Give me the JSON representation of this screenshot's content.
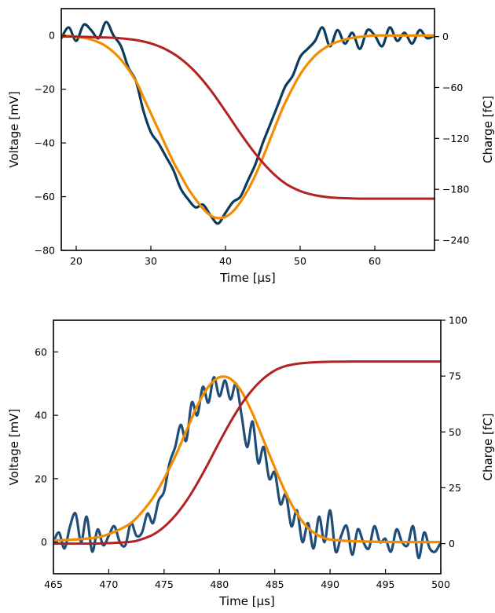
{
  "chart_data": [
    {
      "type": "line",
      "xlabel": "Time [µs]",
      "ylabel": "Voltage [mV]",
      "y2label": "Charge [fC]",
      "xlim": [
        18,
        68
      ],
      "ylim": [
        -80,
        10
      ],
      "y2lim": [
        -252,
        33
      ],
      "xticks": [
        20,
        30,
        40,
        50,
        60
      ],
      "yticks": [
        0,
        -20,
        -40,
        -60,
        -80
      ],
      "y2ticks": [
        0,
        -60,
        -120,
        -180,
        -240
      ],
      "yticklabels": [
        "0",
        "−20",
        "−40",
        "−60",
        "−80"
      ],
      "y2ticklabels": [
        "0",
        "−60",
        "−120",
        "−180",
        "−240"
      ],
      "grid": false,
      "colors": {
        "signal": "#0b3c5d",
        "fit": "#f28c00",
        "charge": "#b22222"
      },
      "series": [
        {
          "role": "signal",
          "axis": "left",
          "x": [
            18,
            19,
            20,
            21,
            22,
            23,
            24,
            25,
            26,
            27,
            28,
            29,
            30,
            31,
            32,
            33,
            34,
            35,
            36,
            37,
            38,
            39,
            40,
            41,
            42,
            43,
            44,
            45,
            46,
            47,
            48,
            49,
            50,
            51,
            52,
            53,
            54,
            55,
            56,
            57,
            58,
            59,
            60,
            61,
            62,
            63,
            64,
            65,
            66,
            67,
            68
          ],
          "y": [
            -1,
            3,
            -2,
            4,
            2,
            -1,
            5,
            0,
            -4,
            -12,
            -17,
            -28,
            -36,
            -40,
            -45,
            -50,
            -57,
            -61,
            -64,
            -63,
            -67,
            -70,
            -66,
            -62,
            -60,
            -54,
            -48,
            -40,
            -33,
            -26,
            -19,
            -15,
            -8,
            -5,
            -2,
            3,
            -4,
            2,
            -3,
            1,
            -5,
            2,
            0,
            -4,
            3,
            -2,
            1,
            -3,
            2,
            -1,
            0
          ]
        },
        {
          "role": "fit",
          "axis": "left",
          "x": [
            18,
            20,
            22,
            24,
            26,
            28,
            29,
            30,
            31,
            32,
            33,
            34,
            35,
            36,
            37,
            38,
            39,
            40,
            41,
            42,
            43,
            44,
            45,
            46,
            47,
            48,
            50,
            52,
            54,
            56,
            58,
            60,
            62,
            64,
            66,
            68
          ],
          "y": [
            0,
            -0.5,
            -1.5,
            -4,
            -9,
            -17,
            -23,
            -29,
            -35,
            -41,
            -47,
            -52,
            -57,
            -61,
            -64.5,
            -67,
            -68,
            -67.5,
            -65.5,
            -62,
            -57.5,
            -52,
            -45.5,
            -38.5,
            -31.5,
            -25,
            -14.5,
            -7.5,
            -3.5,
            -1.5,
            -0.5,
            0,
            0,
            0,
            0,
            0
          ]
        },
        {
          "role": "charge",
          "axis": "right",
          "x": [
            18,
            20,
            22,
            24,
            26,
            28,
            30,
            32,
            34,
            36,
            38,
            40,
            42,
            44,
            46,
            48,
            50,
            52,
            54,
            56,
            58,
            60,
            62,
            64,
            66,
            68
          ],
          "y": [
            0,
            0,
            -0.5,
            -1,
            -2,
            -4,
            -8,
            -15,
            -26,
            -42,
            -63,
            -88,
            -114,
            -138,
            -158,
            -173,
            -182,
            -187,
            -189.5,
            -190.5,
            -191,
            -191,
            -191,
            -191,
            -191,
            -191
          ]
        }
      ]
    },
    {
      "type": "line",
      "xlabel": "Time [µs]",
      "ylabel": "Voltage [mV]",
      "y2label": "Charge [fC]",
      "xlim": [
        465,
        500
      ],
      "ylim": [
        -10,
        70
      ],
      "y2lim": [
        -13.5,
        100
      ],
      "xticks": [
        465,
        470,
        475,
        480,
        485,
        490,
        495,
        500
      ],
      "yticks": [
        0,
        20,
        40,
        60
      ],
      "y2ticks": [
        0,
        25,
        50,
        75,
        100
      ],
      "yticklabels": [
        "0",
        "20",
        "40",
        "60"
      ],
      "y2ticklabels": [
        "0",
        "25",
        "50",
        "75",
        "100"
      ],
      "grid": false,
      "colors": {
        "signal": "#1f4e79",
        "fit": "#f28c00",
        "charge": "#b22222"
      },
      "series": [
        {
          "role": "signal",
          "axis": "left",
          "x": [
            465,
            465.5,
            466,
            466.5,
            467,
            467.5,
            468,
            468.5,
            469,
            469.5,
            470,
            470.5,
            471,
            471.5,
            472,
            472.5,
            473,
            473.5,
            474,
            474.5,
            475,
            475.5,
            476,
            476.5,
            477,
            477.5,
            478,
            478.5,
            479,
            479.5,
            480,
            480.5,
            481,
            481.5,
            482,
            482.5,
            483,
            483.5,
            484,
            484.5,
            485,
            485.5,
            486,
            486.5,
            487,
            487.5,
            488,
            488.5,
            489,
            489.5,
            490,
            490.5,
            491,
            491.5,
            492,
            492.5,
            493,
            493.5,
            494,
            494.5,
            495,
            495.5,
            496,
            496.5,
            497,
            497.5,
            498,
            498.5,
            499,
            499.5,
            500
          ],
          "y": [
            0,
            3,
            -2,
            5,
            9,
            0,
            8,
            -3,
            4,
            -1,
            2,
            5,
            0,
            -1,
            6,
            2,
            3,
            9,
            6,
            13,
            16,
            25,
            30,
            37,
            32,
            44,
            40,
            49,
            44,
            52,
            46,
            51,
            45,
            50,
            40,
            30,
            38,
            25,
            30,
            20,
            22,
            12,
            15,
            5,
            10,
            0,
            6,
            -2,
            8,
            0,
            10,
            -3,
            2,
            5,
            -4,
            4,
            0,
            -2,
            5,
            0,
            1,
            -3,
            4,
            0,
            -1,
            5,
            -5,
            3,
            -2,
            -3,
            0
          ]
        },
        {
          "role": "fit",
          "axis": "left",
          "x": [
            465,
            467,
            469,
            470,
            471,
            472,
            473,
            474,
            475,
            476,
            477,
            478,
            479,
            480,
            481,
            482,
            483,
            484,
            485,
            486,
            487,
            488,
            489,
            490,
            492,
            494,
            496,
            498,
            500
          ],
          "y": [
            0.5,
            0.8,
            1.5,
            2.5,
            4,
            6,
            9.5,
            14,
            20,
            27,
            35,
            43,
            49,
            52,
            51.5,
            47.5,
            40.5,
            32,
            23.5,
            15.5,
            9,
            4.5,
            2,
            0.8,
            0.3,
            0.1,
            0,
            0,
            0
          ]
        },
        {
          "role": "charge",
          "axis": "right",
          "x": [
            465,
            468,
            470,
            472,
            473,
            474,
            475,
            476,
            477,
            478,
            479,
            480,
            481,
            482,
            483,
            484,
            485,
            486,
            487,
            488,
            489,
            490,
            492,
            494,
            496,
            498,
            500
          ],
          "y": [
            0,
            0,
            0.2,
            0.8,
            2,
            4,
            7.5,
            12.5,
            19,
            27,
            36,
            45.5,
            54.5,
            62.5,
            69,
            74,
            77.5,
            79.5,
            80.5,
            81,
            81.3,
            81.4,
            81.5,
            81.5,
            81.5,
            81.5,
            81.5
          ]
        }
      ]
    }
  ]
}
